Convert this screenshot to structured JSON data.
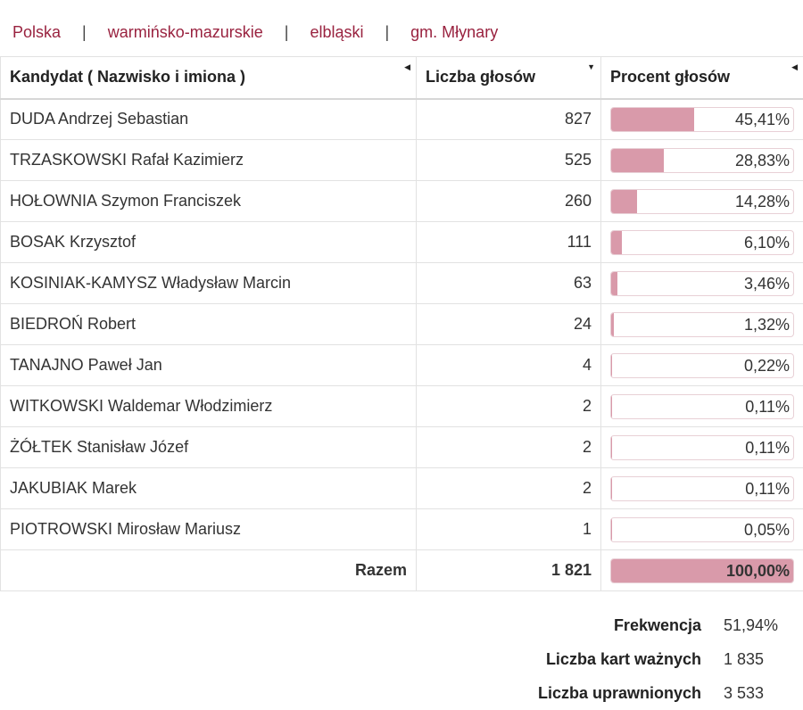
{
  "breadcrumb": [
    "Polska",
    "warmińsko-mazurskie",
    "elbląski",
    "gm. Młynary"
  ],
  "breadcrumb_separator": "|",
  "table": {
    "headers": {
      "candidate": "Kandydat ( Nazwisko i imiona )",
      "votes": "Liczba głosów",
      "percent": "Procent głosów"
    },
    "header_icons": {
      "candidate": "sort-left-icon",
      "votes": "sort-down-icon",
      "percent": "sort-left-icon"
    },
    "rows": [
      {
        "name": "DUDA Andrzej Sebastian",
        "votes": "827",
        "percent": "45,41%",
        "share": 45.41
      },
      {
        "name": "TRZASKOWSKI Rafał Kazimierz",
        "votes": "525",
        "percent": "28,83%",
        "share": 28.83
      },
      {
        "name": "HOŁOWNIA Szymon Franciszek",
        "votes": "260",
        "percent": "14,28%",
        "share": 14.28
      },
      {
        "name": "BOSAK Krzysztof",
        "votes": "111",
        "percent": "6,10%",
        "share": 6.1
      },
      {
        "name": "KOSINIAK-KAMYSZ Władysław Marcin",
        "votes": "63",
        "percent": "3,46%",
        "share": 3.46
      },
      {
        "name": "BIEDROŃ Robert",
        "votes": "24",
        "percent": "1,32%",
        "share": 1.32
      },
      {
        "name": "TANAJNO Paweł Jan",
        "votes": "4",
        "percent": "0,22%",
        "share": 0.22
      },
      {
        "name": "WITKOWSKI Waldemar Włodzimierz",
        "votes": "2",
        "percent": "0,11%",
        "share": 0.11
      },
      {
        "name": "ŻÓŁTEK Stanisław Józef",
        "votes": "2",
        "percent": "0,11%",
        "share": 0.11
      },
      {
        "name": "JAKUBIAK Marek",
        "votes": "2",
        "percent": "0,11%",
        "share": 0.11
      },
      {
        "name": "PIOTROWSKI Mirosław Mariusz",
        "votes": "1",
        "percent": "0,05%",
        "share": 0.05
      }
    ],
    "total": {
      "label": "Razem",
      "votes": "1 821",
      "percent": "100,00%",
      "share": 100
    }
  },
  "summary": [
    {
      "label": "Frekwencja",
      "value": "51,94%"
    },
    {
      "label": "Liczba kart ważnych",
      "value": "1 835"
    },
    {
      "label": "Liczba uprawnionych",
      "value": "3 533"
    }
  ],
  "colors": {
    "link": "#99223f",
    "bar_fill": "#d99aaa",
    "bar_border": "#e8d0d6"
  }
}
